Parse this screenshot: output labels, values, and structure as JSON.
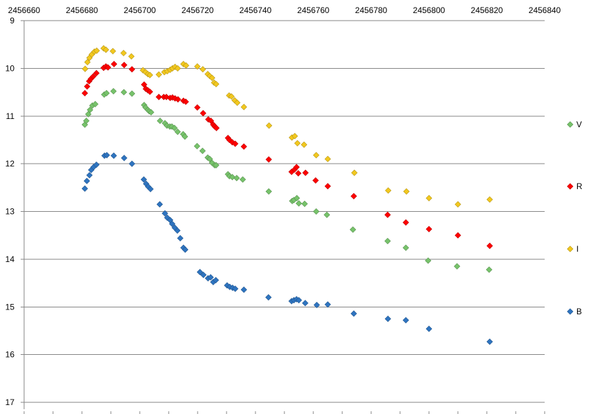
{
  "chart_data": {
    "type": "scatter",
    "title": "",
    "xlabel": "",
    "ylabel": "",
    "xlim": [
      2456660,
      2456840
    ],
    "ylim": [
      9,
      17
    ],
    "y_inverted": true,
    "x_ticks": [
      2456660,
      2456680,
      2456700,
      2456720,
      2456740,
      2456760,
      2456780,
      2456800,
      2456820,
      2456840
    ],
    "y_ticks": [
      9,
      10,
      11,
      12,
      13,
      14,
      15,
      16,
      17
    ],
    "x_tick_labels": [
      "2456660",
      "2456680",
      "2456700",
      "2456720",
      "2456740",
      "2456760",
      "2456780",
      "2456800",
      "2456820",
      "2456840"
    ],
    "y_tick_labels": [
      "9",
      "10",
      "11",
      "12",
      "13",
      "14",
      "15",
      "16",
      "17"
    ],
    "grid": "horizontal",
    "legend_position": "right",
    "series": [
      {
        "name": "V",
        "color": "#77c36b",
        "x": [
          2456681.0,
          2456681.5,
          2456682.2,
          2456682.8,
          2456683.6,
          2456684.6,
          2456687.7,
          2456688.5,
          2456690.9,
          2456694.5,
          2456697.3,
          2456701.5,
          2456702.0,
          2456702.8,
          2456703.3,
          2456703.9,
          2456707.0,
          2456708.7,
          2456709.4,
          2456710.4,
          2456711.1,
          2456712.0,
          2456713.1,
          2456715.0,
          2456715.6,
          2456719.8,
          2456721.7,
          2456723.5,
          2456724.2,
          2456725.0,
          2456725.9,
          2456726.4,
          2456730.5,
          2456731.0,
          2456732.0,
          2456733.5,
          2456735.6,
          2456744.6,
          2456752.7,
          2456753.3,
          2456754.3,
          2456755.0,
          2456757.0,
          2456761.0,
          2456764.7,
          2456773.7,
          2456785.7,
          2456792.0,
          2456799.7,
          2456809.7,
          2456820.8
        ],
        "y": [
          11.18,
          11.1,
          10.96,
          10.87,
          10.78,
          10.75,
          10.55,
          10.52,
          10.48,
          10.5,
          10.53,
          10.77,
          10.82,
          10.87,
          10.9,
          10.92,
          11.1,
          11.15,
          11.2,
          11.22,
          11.22,
          11.25,
          11.33,
          11.38,
          11.43,
          11.63,
          11.73,
          11.87,
          11.9,
          11.98,
          12.03,
          12.03,
          12.22,
          12.26,
          12.28,
          12.3,
          12.33,
          12.58,
          12.78,
          12.76,
          12.72,
          12.83,
          12.84,
          13.0,
          13.07,
          13.38,
          13.62,
          13.76,
          14.03,
          14.15,
          14.22
        ]
      },
      {
        "name": "R",
        "color": "#ff0000",
        "x": [
          2456681.0,
          2456681.8,
          2456682.5,
          2456683.1,
          2456683.9,
          2456685.0,
          2456687.5,
          2456688.3,
          2456689.0,
          2456691.1,
          2456694.6,
          2456697.3,
          2456701.5,
          2456702.1,
          2456702.8,
          2456703.5,
          2456706.6,
          2456708.3,
          2456709.2,
          2456710.5,
          2456711.3,
          2456712.2,
          2456713.2,
          2456715.1,
          2456715.9,
          2456719.9,
          2456721.9,
          2456723.7,
          2456724.6,
          2456725.4,
          2456725.9,
          2456726.5,
          2456730.5,
          2456731.0,
          2456732.0,
          2456733.0,
          2456736.0,
          2456744.6,
          2456752.5,
          2456753.5,
          2456754.2,
          2456754.8,
          2456757.3,
          2456760.8,
          2456765.0,
          2456774.0,
          2456785.7,
          2456792.0,
          2456800.0,
          2456810.0,
          2456821.0
        ],
        "y": [
          10.52,
          10.38,
          10.27,
          10.22,
          10.17,
          10.1,
          9.99,
          9.96,
          9.98,
          9.91,
          9.93,
          10.02,
          10.34,
          10.43,
          10.46,
          10.49,
          10.6,
          10.6,
          10.6,
          10.62,
          10.61,
          10.63,
          10.65,
          10.68,
          10.7,
          10.82,
          10.94,
          11.07,
          11.1,
          11.18,
          11.22,
          11.25,
          11.46,
          11.5,
          11.55,
          11.58,
          11.64,
          11.91,
          12.17,
          12.12,
          12.07,
          12.2,
          12.19,
          12.35,
          12.47,
          12.68,
          13.07,
          13.23,
          13.37,
          13.5,
          13.72
        ]
      },
      {
        "name": "I",
        "color": "#f2c81f",
        "x": [
          2456681.1,
          2456681.9,
          2456682.6,
          2456683.4,
          2456684.3,
          2456685.1,
          2456687.5,
          2456688.3,
          2456690.7,
          2456694.4,
          2456697.1,
          2456701.1,
          2456702.0,
          2456702.8,
          2456703.5,
          2456706.6,
          2456708.5,
          2456709.5,
          2456710.5,
          2456711.3,
          2456712.2,
          2456713.1,
          2456715.1,
          2456716.0,
          2456719.9,
          2456721.8,
          2456723.5,
          2456724.2,
          2456725.0,
          2456725.7,
          2456726.4,
          2456730.9,
          2456731.7,
          2456732.8,
          2456733.7,
          2456736.0,
          2456744.7,
          2456752.6,
          2456753.6,
          2456754.5,
          2456756.8,
          2456761.0,
          2456765.0,
          2456774.2,
          2456785.9,
          2456792.2,
          2456800.0,
          2456810.0,
          2456821.0
        ],
        "y": [
          10.01,
          9.87,
          9.78,
          9.71,
          9.65,
          9.63,
          9.58,
          9.61,
          9.64,
          9.68,
          9.75,
          10.04,
          10.08,
          10.12,
          10.14,
          10.13,
          10.08,
          10.06,
          10.03,
          10.0,
          9.97,
          10.0,
          9.91,
          9.94,
          9.96,
          10.02,
          10.12,
          10.16,
          10.2,
          10.3,
          10.33,
          10.57,
          10.59,
          10.67,
          10.72,
          10.81,
          11.2,
          11.45,
          11.42,
          11.57,
          11.6,
          11.82,
          11.9,
          12.19,
          12.56,
          12.58,
          12.72,
          12.85,
          12.75
        ]
      },
      {
        "name": "B",
        "color": "#2e74c0",
        "x": [
          2456681.0,
          2456681.7,
          2456682.6,
          2456683.2,
          2456684.0,
          2456685.0,
          2456687.8,
          2456688.6,
          2456691.0,
          2456694.6,
          2456697.3,
          2456701.4,
          2456702.2,
          2456702.9,
          2456703.7,
          2456706.9,
          2456708.7,
          2456709.5,
          2456710.5,
          2456711.2,
          2456712.1,
          2456713.0,
          2456714.0,
          2456715.1,
          2456715.7,
          2456720.8,
          2456722.0,
          2456723.6,
          2456724.5,
          2456725.4,
          2456726.3,
          2456730.2,
          2456731.1,
          2456732.1,
          2456733.0,
          2456736.0,
          2456744.5,
          2456752.5,
          2456753.3,
          2456754.2,
          2456755.0,
          2456757.2,
          2456761.2,
          2456765.0,
          2456774.0,
          2456785.8,
          2456792.0,
          2456800.0,
          2456821.0
        ],
        "y": [
          12.52,
          12.36,
          12.24,
          12.13,
          12.07,
          12.02,
          11.83,
          11.82,
          11.83,
          11.88,
          12.0,
          12.33,
          12.42,
          12.48,
          12.53,
          12.85,
          13.04,
          13.13,
          13.18,
          13.26,
          13.34,
          13.4,
          13.56,
          13.76,
          13.8,
          14.27,
          14.33,
          14.4,
          14.38,
          14.48,
          14.44,
          14.55,
          14.58,
          14.6,
          14.62,
          14.64,
          14.8,
          14.88,
          14.86,
          14.84,
          14.86,
          14.92,
          14.96,
          14.95,
          15.14,
          15.25,
          15.28,
          15.46,
          15.73
        ]
      }
    ]
  }
}
